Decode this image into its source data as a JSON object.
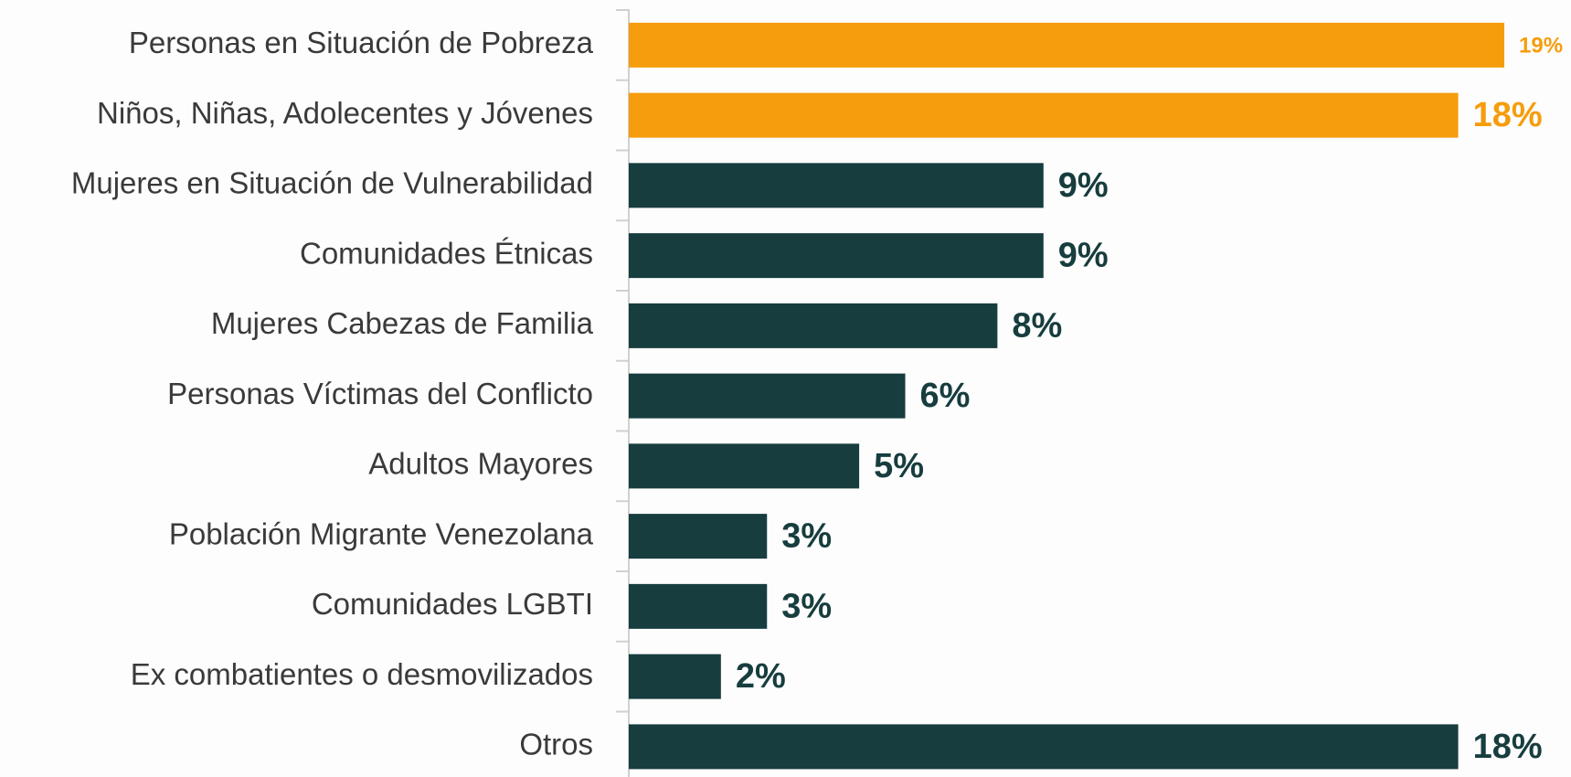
{
  "chart_data": {
    "type": "hbar",
    "categories": [
      "Personas en Situación de Pobreza",
      "Niños, Niñas, Adolecentes y Jóvenes",
      "Mujeres en Situación de Vulnerabilidad",
      "Comunidades Étnicas",
      "Mujeres Cabezas de Familia",
      "Personas Víctimas del Conflicto",
      "Adultos Mayores",
      "Población Migrante Venezolana",
      "Comunidades LGBTI",
      "Ex combatientes o desmovilizados",
      "Otros"
    ],
    "values": [
      19,
      18,
      9,
      9,
      8,
      6,
      5,
      3,
      3,
      2,
      18
    ],
    "value_labels": [
      "19%",
      "18%",
      "9%",
      "9%",
      "8%",
      "6%",
      "5%",
      "3%",
      "3%",
      "2%",
      "18%"
    ],
    "colors": [
      "#f59d0c",
      "#f59d0c",
      "#173d3e",
      "#173d3e",
      "#173d3e",
      "#173d3e",
      "#173d3e",
      "#173d3e",
      "#173d3e",
      "#173d3e",
      "#173d3e"
    ]
  }
}
